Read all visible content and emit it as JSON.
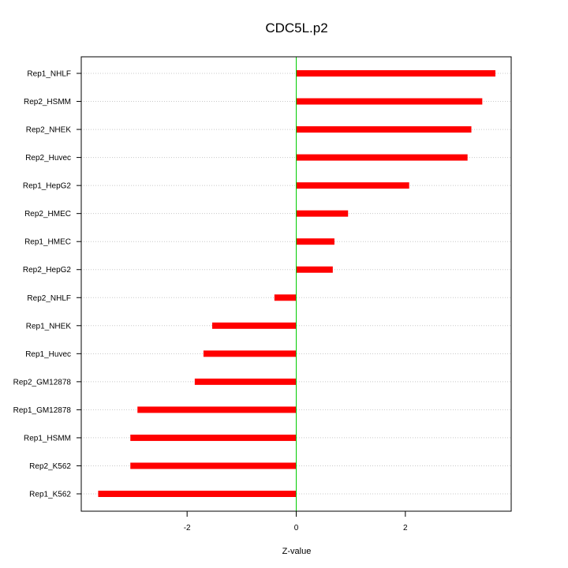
{
  "chart_data": {
    "type": "bar",
    "orientation": "horizontal",
    "title": "CDC5L.p2",
    "xlabel": "Z-value",
    "ylabel": "",
    "categories": [
      "Rep1_NHLF",
      "Rep2_HSMM",
      "Rep2_NHEK",
      "Rep2_Huvec",
      "Rep1_HepG2",
      "Rep2_HMEC",
      "Rep1_HMEC",
      "Rep2_HepG2",
      "Rep2_NHLF",
      "Rep1_NHEK",
      "Rep1_Huvec",
      "Rep2_GM12878",
      "Rep1_GM12878",
      "Rep1_HSMM",
      "Rep2_K562",
      "Rep1_K562"
    ],
    "values": [
      3.65,
      3.41,
      3.21,
      3.14,
      2.07,
      0.95,
      0.7,
      0.67,
      -0.4,
      -1.54,
      -1.7,
      -1.86,
      -2.91,
      -3.04,
      -3.04,
      -3.63
    ],
    "xlim": [
      -3.94,
      3.94
    ],
    "xticks": [
      -2,
      0,
      2
    ],
    "xtick_labels": [
      "-2",
      "0",
      "2"
    ],
    "bar_color": "#ff0000",
    "zero_line_color": "#00cc00",
    "grid": "horizontal-dotted"
  }
}
